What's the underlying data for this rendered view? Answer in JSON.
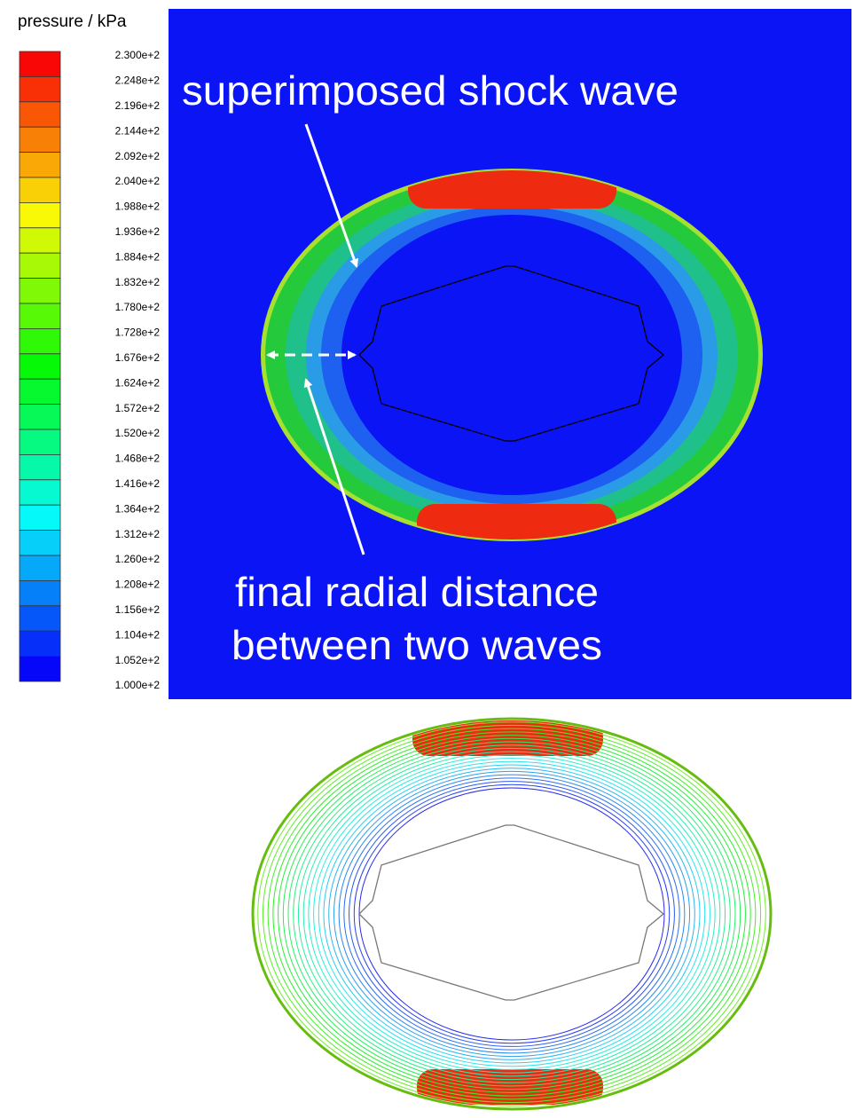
{
  "colorbar": {
    "title": "pressure / kPa",
    "labels": [
      "2.300e+2",
      "2.248e+2",
      "2.196e+2",
      "2.144e+2",
      "2.092e+2",
      "2.040e+2",
      "1.988e+2",
      "1.936e+2",
      "1.884e+2",
      "1.832e+2",
      "1.780e+2",
      "1.728e+2",
      "1.676e+2",
      "1.624e+2",
      "1.572e+2",
      "1.520e+2",
      "1.468e+2",
      "1.416e+2",
      "1.364e+2",
      "1.312e+2",
      "1.260e+2",
      "1.208e+2",
      "1.156e+2",
      "1.104e+2",
      "1.052e+2",
      "1.000e+2"
    ]
  },
  "annotations": {
    "shock": "superimposed shock wave",
    "distance_line1": "final radial distance",
    "distance_line2": "between two waves"
  }
}
